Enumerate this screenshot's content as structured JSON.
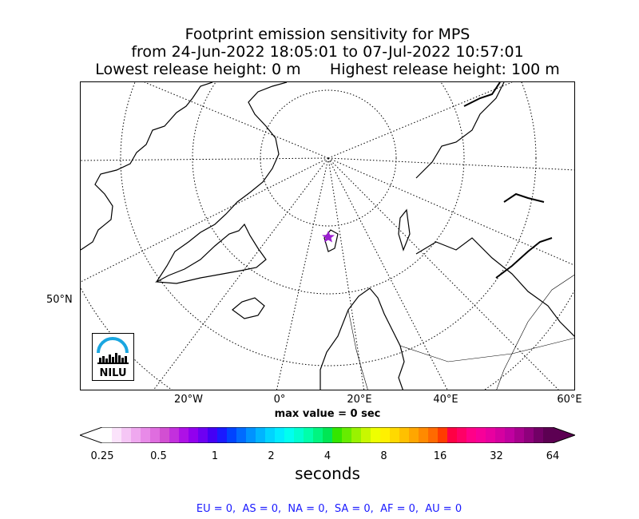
{
  "title": {
    "line1": "Footprint emission sensitivity for MPS",
    "line2": "from 24-Jun-2022 18:05:01 to 07-Jul-2022 10:57:01",
    "line3_left": "Lowest release height: 0 m",
    "line3_right": "Highest release height: 100 m"
  },
  "map": {
    "lon_labels": [
      "20°W",
      "0°",
      "20°E",
      "40°E",
      "60°E"
    ],
    "lat_label": "50°N",
    "logo_text": "NILU",
    "marker_color": "#9b1fd0"
  },
  "max_value_label": "max value = 0 sec",
  "chart_data": {
    "type": "heatmap",
    "title": "Footprint emission sensitivity for MPS",
    "colorbar": {
      "label": "seconds",
      "ticks": [
        "0.25",
        "0.5",
        "1",
        "2",
        "4",
        "8",
        "16",
        "32",
        "64"
      ],
      "tick_values": [
        0.25,
        0.5,
        1,
        2,
        4,
        8,
        16,
        32,
        64
      ],
      "scale": "log",
      "extend": "both",
      "colors": [
        "#ffffff",
        "#fbe3fb",
        "#f5c6f5",
        "#efa8ef",
        "#e88ae8",
        "#df6ddf",
        "#d24fd2",
        "#c330dd",
        "#ae11e6",
        "#9200ee",
        "#6d00f2",
        "#4400f5",
        "#1a1aff",
        "#0044ff",
        "#006bff",
        "#0092ff",
        "#00b4ff",
        "#00d4ff",
        "#00ecff",
        "#00fff0",
        "#00ffd0",
        "#00ffaa",
        "#00f580",
        "#00e654",
        "#33e600",
        "#66ec00",
        "#99f200",
        "#c8f700",
        "#eeff00",
        "#fff000",
        "#ffd900",
        "#ffc000",
        "#ffa600",
        "#ff8a00",
        "#ff6a00",
        "#ff3c00",
        "#ff0044",
        "#ff0066",
        "#ff0088",
        "#f70099",
        "#e800a0",
        "#d500a0",
        "#c000a0",
        "#a8008e",
        "#8e007c",
        "#720066",
        "#5c0052"
      ]
    },
    "max_value": 0,
    "units": "sec"
  },
  "footer": "EU = 0,  AS = 0,  NA = 0,  SA = 0,  AF = 0,  AU = 0"
}
